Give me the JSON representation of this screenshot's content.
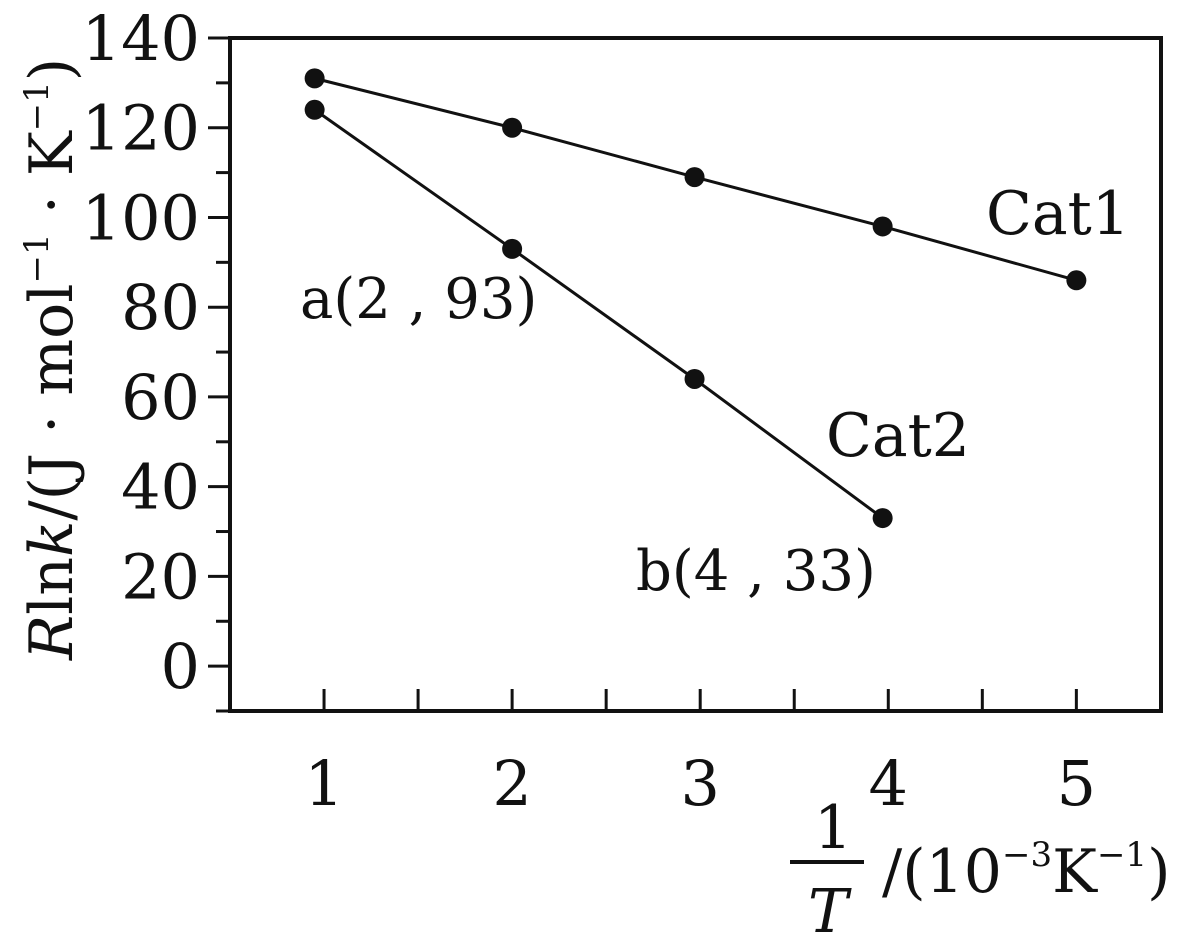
{
  "chart_data": {
    "type": "line",
    "title": "",
    "xlabel_num": "1",
    "xlabel_den": "T",
    "xlabel_unit_prefix": "/(10",
    "xlabel_unit_exp1": "−3",
    "xlabel_unit_mid": "K",
    "xlabel_unit_exp2": "−1",
    "xlabel_unit_suffix": ")",
    "ylabel_R": "R",
    "ylabel_ln": "ln",
    "ylabel_k": "k",
    "ylabel_unit_a": "/(J · mol",
    "ylabel_unit_exp1": "−1",
    "ylabel_unit_b": " · K",
    "ylabel_unit_exp2": "−1",
    "ylabel_unit_c": ")",
    "xlim": [
      0.5,
      5.45
    ],
    "ylim": [
      -10,
      140
    ],
    "x_ticks": [
      1,
      2,
      3,
      4,
      5
    ],
    "x_tick_labels": [
      "1",
      "2",
      "3",
      "4",
      "5"
    ],
    "x_minor_ticks": [
      1.5,
      2.5,
      3.5,
      4.5
    ],
    "y_ticks": [
      0,
      20,
      40,
      60,
      80,
      100,
      120,
      140
    ],
    "y_tick_labels": [
      "0",
      "20",
      "40",
      "60",
      "80",
      "100",
      "120",
      "140"
    ],
    "y_minor_ticks": [
      -10,
      10,
      30,
      50,
      70,
      90,
      110,
      130
    ],
    "grid": false,
    "series": [
      {
        "name": "Cat1",
        "x": [
          0.95,
          2,
          2.97,
          3.97,
          5
        ],
        "y": [
          131,
          120,
          109,
          98,
          86
        ]
      },
      {
        "name": "Cat2",
        "x": [
          0.95,
          2,
          2.97,
          3.97
        ],
        "y": [
          124,
          93,
          64,
          33
        ]
      }
    ],
    "annotations": [
      {
        "text": "a(2 , 93)",
        "x": 2,
        "y": 93
      },
      {
        "text": "b(4 , 33)",
        "x": 4,
        "y": 33
      }
    ]
  }
}
